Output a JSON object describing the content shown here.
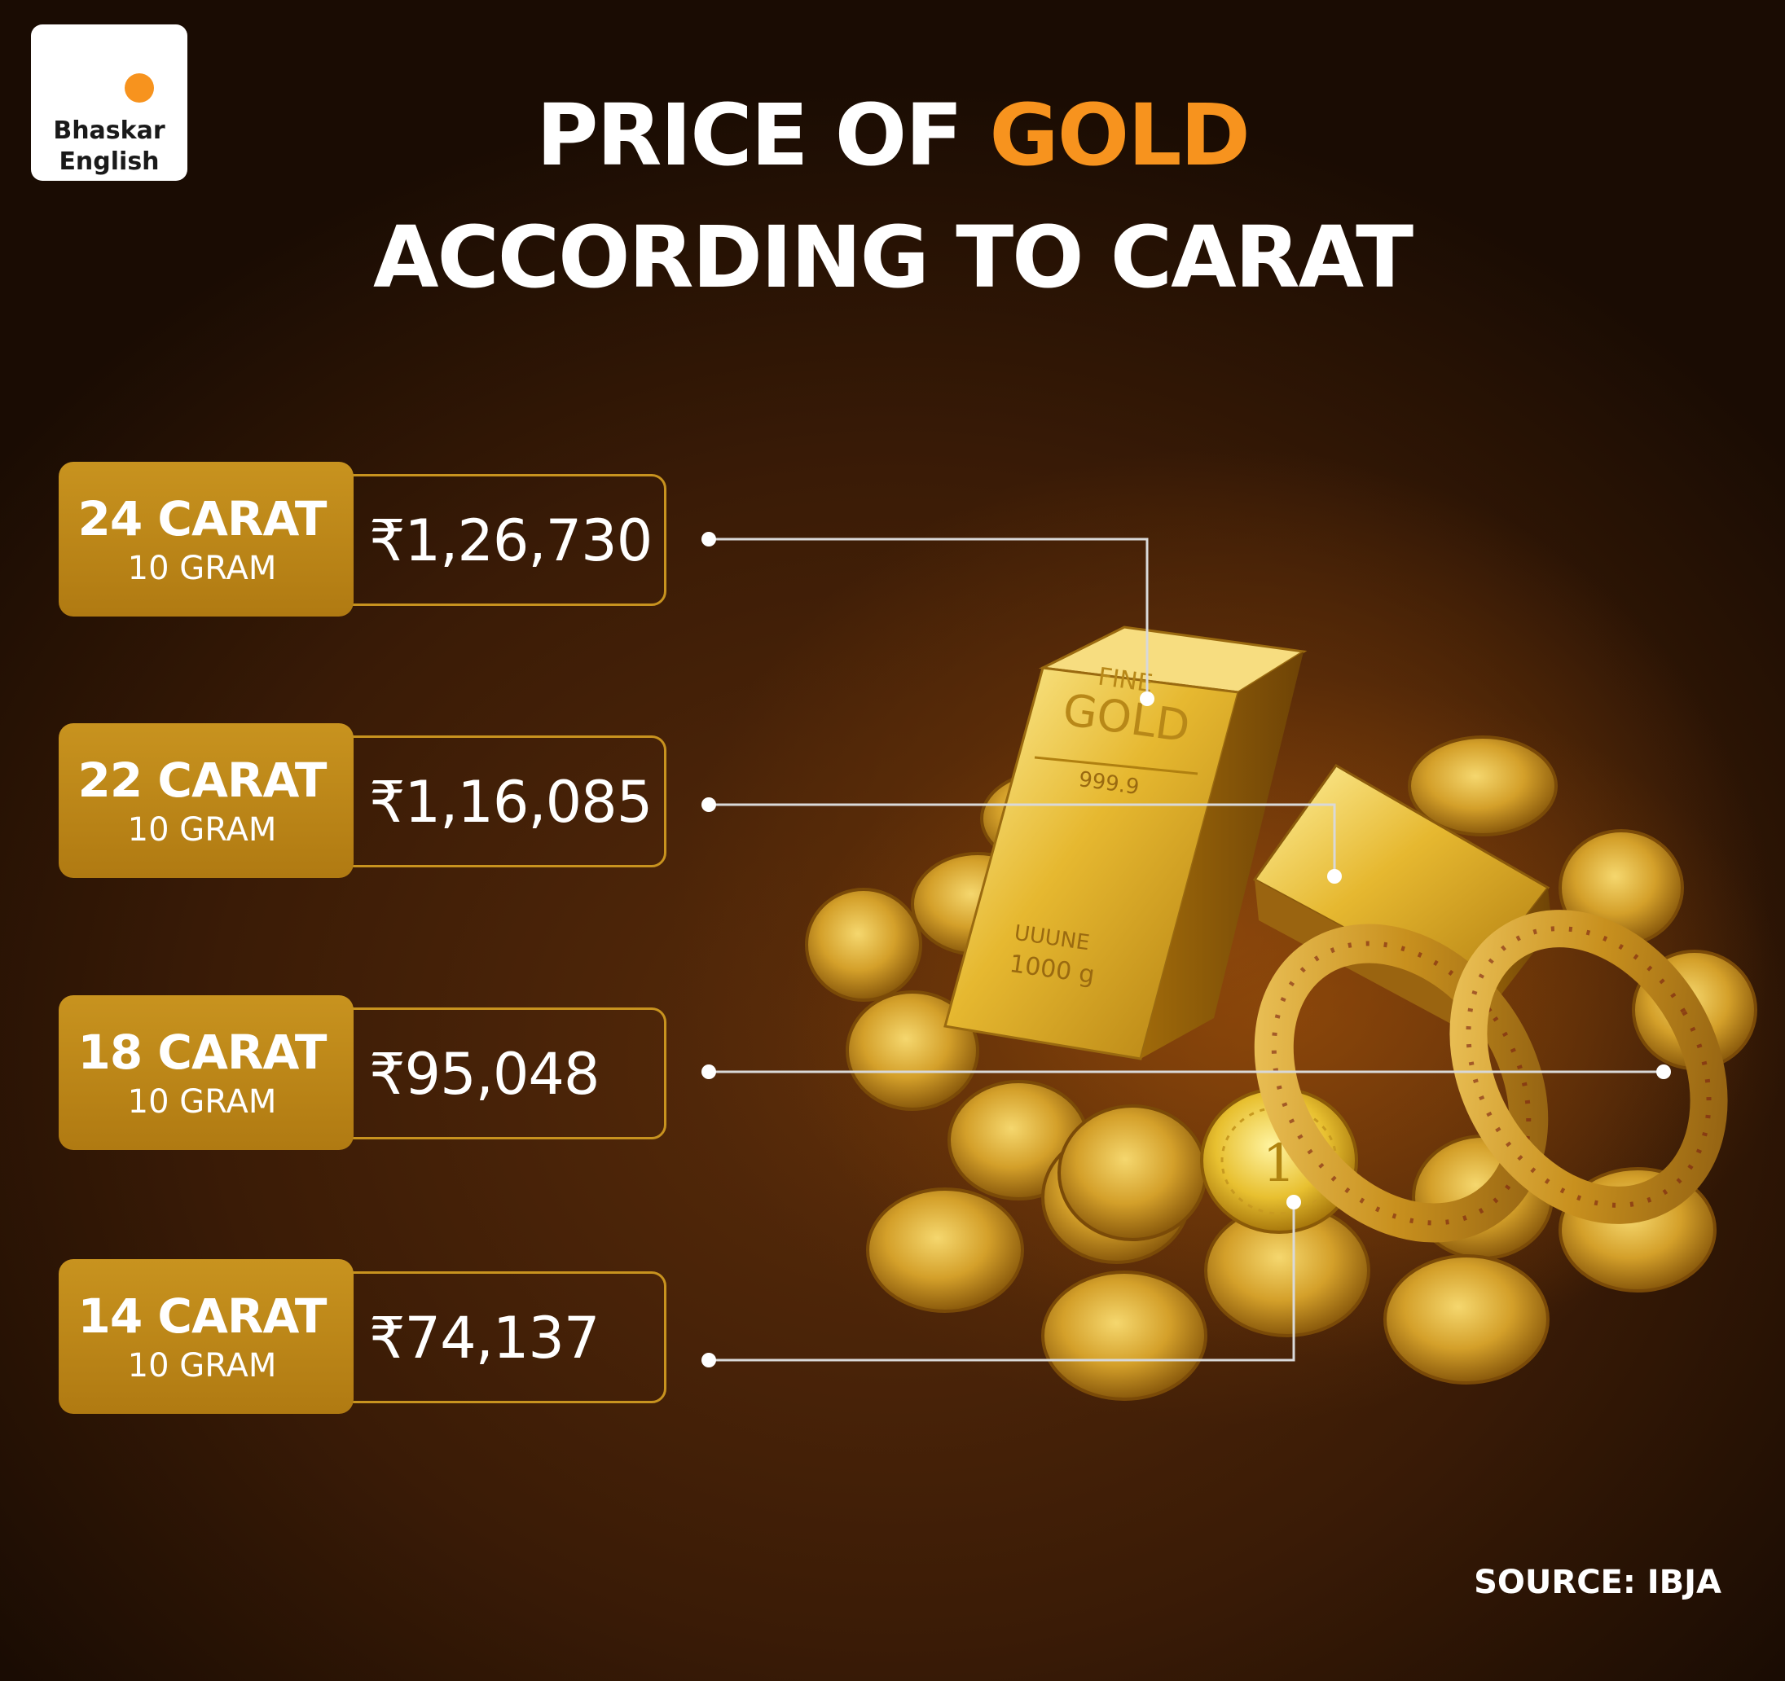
{
  "brand": {
    "line1": "Bhaskar",
    "line2": "English",
    "dot_color": "#f7931e"
  },
  "title": {
    "prefix": "PRICE OF ",
    "highlight": "GOLD",
    "line2": "ACCORDING TO CARAT"
  },
  "rows": [
    {
      "carat": "24 CARAT",
      "unit": "10 GRAM",
      "price": "₹1,26,730"
    },
    {
      "carat": "22 CARAT",
      "unit": "10 GRAM",
      "price": "₹1,16,085"
    },
    {
      "carat": "18 CARAT",
      "unit": "10 GRAM",
      "price": "₹95,048"
    },
    {
      "carat": "14 CARAT",
      "unit": "10 GRAM",
      "price": "₹74,137"
    }
  ],
  "illustration": {
    "bar_engraving": {
      "top": "FINE",
      "main": "GOLD",
      "purity": "999.9",
      "weight_line1": "UUUNE",
      "weight_line2": "1000 g"
    },
    "coin_mark": "1"
  },
  "source": "SOURCE: IBJA",
  "colors": {
    "accent": "#f7931e",
    "label_gold": "#c8931f",
    "text": "#ffffff"
  }
}
